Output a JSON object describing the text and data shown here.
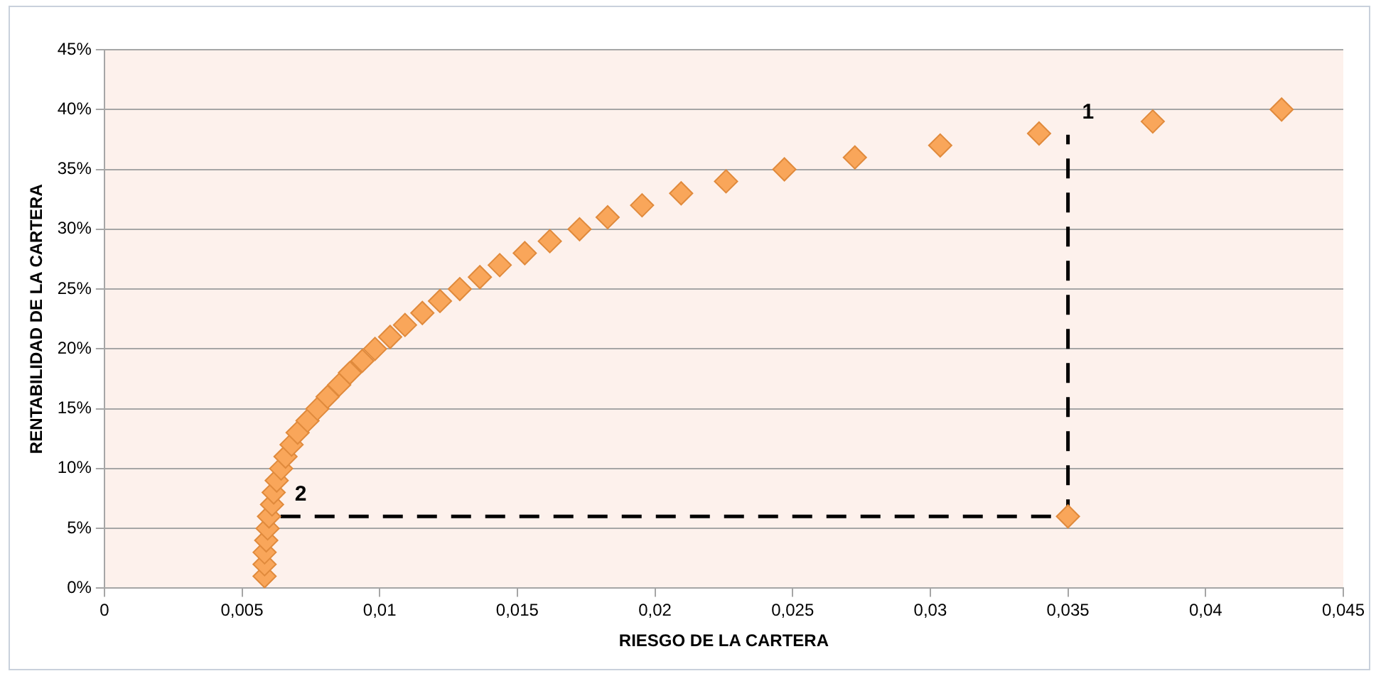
{
  "chart_data": {
    "type": "scatter",
    "xlabel": "RIESGO DE LA CARTERA",
    "ylabel": "RENTABILIDAD DE LA CARTERA",
    "xlim": [
      0,
      0.045
    ],
    "xticks": [
      {
        "value": 0,
        "label": "0"
      },
      {
        "value": 0.005,
        "label": "0,005"
      },
      {
        "value": 0.01,
        "label": "0,01"
      },
      {
        "value": 0.015,
        "label": "0,015"
      },
      {
        "value": 0.02,
        "label": "0,02"
      },
      {
        "value": 0.025,
        "label": "0,025"
      },
      {
        "value": 0.03,
        "label": "0,03"
      },
      {
        "value": 0.035,
        "label": "0,035"
      },
      {
        "value": 0.04,
        "label": "0,04"
      },
      {
        "value": 0.045,
        "label": "0,045"
      }
    ],
    "ylim": [
      0,
      45
    ],
    "yticks": [
      {
        "value": 0,
        "label": "0%"
      },
      {
        "value": 5,
        "label": "5%"
      },
      {
        "value": 10,
        "label": "10%"
      },
      {
        "value": 15,
        "label": "15%"
      },
      {
        "value": 20,
        "label": "20%"
      },
      {
        "value": 25,
        "label": "25%"
      },
      {
        "value": 30,
        "label": "30%"
      },
      {
        "value": 35,
        "label": "35%"
      },
      {
        "value": 40,
        "label": "40%"
      },
      {
        "value": 45,
        "label": "45%"
      }
    ],
    "grid": "y",
    "legend": false,
    "marker": "diamond",
    "series": [
      {
        "type": "scatter",
        "color": "#f9a65a",
        "x": [
          0.00582,
          0.00582,
          0.00582,
          0.00588,
          0.00593,
          0.00598,
          0.00609,
          0.00615,
          0.00626,
          0.00642,
          0.00658,
          0.0068,
          0.00702,
          0.00738,
          0.00774,
          0.00811,
          0.00853,
          0.00892,
          0.00937,
          0.00983,
          0.01038,
          0.01092,
          0.01155,
          0.01219,
          0.01291,
          0.01364,
          0.01436,
          0.01527,
          0.01618,
          0.01726,
          0.01828,
          0.01953,
          0.02095,
          0.02258,
          0.0247,
          0.02726,
          0.03036,
          0.03395,
          0.03808,
          0.04276,
          0.035
        ],
        "values": [
          1,
          2,
          3,
          4,
          5,
          6,
          7,
          8,
          9,
          10,
          11,
          12,
          13,
          14,
          15,
          16,
          17,
          18,
          19,
          20,
          21,
          22,
          23,
          24,
          25,
          26,
          27,
          28,
          29,
          30,
          31,
          32,
          33,
          34,
          35,
          36,
          37,
          38,
          39,
          40,
          6
        ]
      },
      {
        "type": "line",
        "color": "#000000",
        "line_style": "dashed",
        "marker": "none",
        "x": [
          0.0064,
          0.035,
          0.035
        ],
        "values": [
          6,
          6,
          37.9
        ]
      }
    ],
    "annotations": [
      {
        "text": "1",
        "x": 0.035,
        "y": 37.9
      },
      {
        "text": "2",
        "x": 0.0064,
        "y": 6
      }
    ]
  }
}
